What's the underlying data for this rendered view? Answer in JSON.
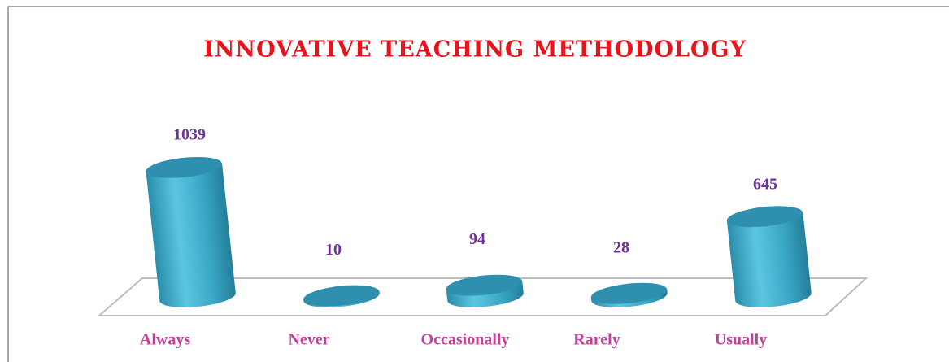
{
  "chart_data": {
    "type": "bar",
    "title": "INNOVATIVE TEACHING METHODOLOGY",
    "categories": [
      "Always",
      "Never",
      "Occasionally",
      "Rarely",
      "Usually"
    ],
    "values": [
      1039,
      10,
      94,
      28,
      645
    ],
    "color": "#3aa8c6"
  }
}
